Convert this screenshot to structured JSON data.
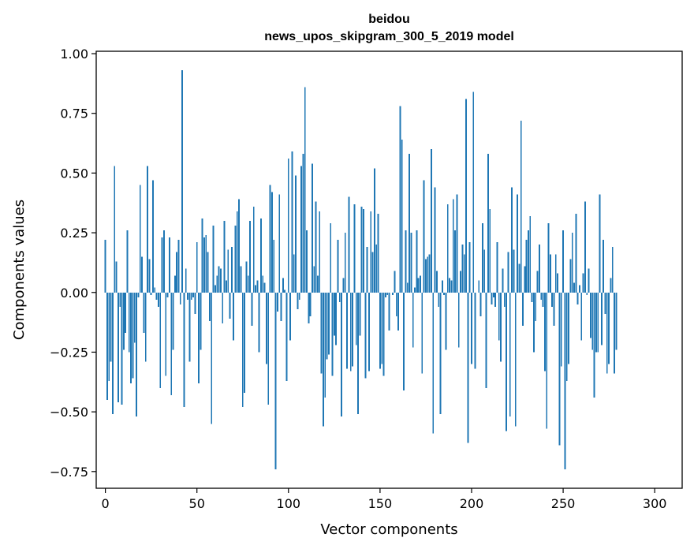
{
  "chart_data": {
    "type": "bar",
    "title": "beidou",
    "subtitle": "news_upos_skipgram_300_5_2019 model",
    "xlabel": "Vector components",
    "ylabel": "Components values",
    "xlim": [
      -5,
      315
    ],
    "ylim": [
      -0.82,
      1.01
    ],
    "x_ticks": [
      0,
      50,
      100,
      150,
      200,
      250,
      300
    ],
    "y_ticks": [
      1.0,
      0.75,
      0.5,
      0.25,
      0.0,
      -0.25,
      -0.5,
      -0.75
    ],
    "x_tick_labels": [
      "0",
      "50",
      "100",
      "150",
      "200",
      "250",
      "300"
    ],
    "y_tick_labels": [
      "1.00",
      "0.75",
      "0.50",
      "0.25",
      "0.00",
      "−0.25",
      "−0.50",
      "−0.75"
    ],
    "bar_color": "#1f77b4",
    "values": [
      0.22,
      -0.45,
      -0.37,
      -0.29,
      -0.51,
      0.53,
      0.13,
      -0.46,
      -0.06,
      -0.47,
      -0.24,
      -0.17,
      0.26,
      -0.25,
      -0.38,
      -0.36,
      -0.21,
      -0.52,
      -0.02,
      0.45,
      0.15,
      -0.17,
      -0.29,
      0.53,
      0.14,
      -0.01,
      0.47,
      0.02,
      -0.03,
      -0.06,
      -0.4,
      0.23,
      0.26,
      -0.35,
      -0.02,
      0.23,
      -0.43,
      -0.24,
      0.07,
      0.17,
      0.22,
      -0.05,
      0.93,
      -0.48,
      0.1,
      -0.03,
      -0.29,
      -0.03,
      -0.02,
      -0.09,
      0.21,
      -0.38,
      -0.24,
      0.31,
      0.23,
      0.24,
      0.17,
      -0.12,
      -0.55,
      0.28,
      0.03,
      0.07,
      0.11,
      0.1,
      -0.13,
      0.3,
      0.05,
      0.18,
      -0.11,
      0.19,
      -0.2,
      0.28,
      0.34,
      0.39,
      0.11,
      -0.48,
      -0.42,
      0.13,
      0.07,
      0.3,
      -0.14,
      0.36,
      0.03,
      0.05,
      -0.25,
      0.31,
      0.07,
      0.04,
      -0.3,
      -0.47,
      0.45,
      0.42,
      0.22,
      -0.74,
      -0.08,
      0.41,
      -0.12,
      0.06,
      0.01,
      -0.37,
      0.56,
      -0.2,
      0.59,
      0.16,
      0.49,
      -0.07,
      -0.03,
      0.53,
      0.58,
      0.86,
      0.26,
      -0.13,
      -0.1,
      0.54,
      0.11,
      0.38,
      0.07,
      0.34,
      -0.34,
      -0.56,
      -0.44,
      -0.28,
      -0.26,
      0.29,
      -0.35,
      -0.18,
      -0.22,
      0.22,
      -0.04,
      -0.52,
      0.06,
      0.25,
      -0.32,
      0.4,
      -0.33,
      -0.31,
      0.37,
      -0.22,
      -0.51,
      -0.18,
      0.36,
      0.35,
      -0.36,
      0.19,
      -0.33,
      0.34,
      0.17,
      0.52,
      0.2,
      0.33,
      -0.32,
      -0.3,
      -0.35,
      -0.02,
      -0.01,
      -0.16,
      0.0,
      -0.01,
      0.09,
      -0.1,
      -0.16,
      0.78,
      0.64,
      -0.41,
      0.26,
      0.04,
      0.58,
      0.25,
      -0.23,
      0.02,
      0.26,
      0.06,
      0.07,
      -0.34,
      0.47,
      0.14,
      0.15,
      0.16,
      0.6,
      -0.59,
      0.44,
      0.09,
      -0.06,
      -0.51,
      0.05,
      -0.01,
      -0.24,
      0.37,
      0.06,
      0.05,
      0.39,
      0.26,
      0.41,
      -0.23,
      0.09,
      0.2,
      0.16,
      0.81,
      -0.63,
      0.21,
      -0.3,
      0.84,
      -0.32,
      0.0,
      0.05,
      -0.1,
      0.29,
      0.18,
      -0.4,
      0.58,
      0.35,
      -0.05,
      -0.02,
      -0.06,
      0.21,
      -0.2,
      -0.29,
      0.1,
      -0.06,
      -0.58,
      0.17,
      -0.52,
      0.44,
      0.18,
      -0.56,
      0.41,
      0.12,
      0.72,
      -0.14,
      0.11,
      0.22,
      0.26,
      0.32,
      -0.04,
      -0.25,
      -0.12,
      0.09,
      0.2,
      -0.03,
      -0.06,
      -0.33,
      -0.57,
      0.29,
      0.16,
      -0.06,
      -0.14,
      0.16,
      0.08,
      -0.64,
      -0.31,
      0.26,
      -0.74,
      -0.37,
      -0.3,
      0.14,
      0.25,
      0.04,
      0.33,
      -0.05,
      0.03,
      -0.2,
      0.08,
      0.38,
      -0.01,
      0.1,
      -0.19,
      -0.24,
      -0.44,
      -0.25,
      -0.25,
      0.41,
      -0.22,
      0.22,
      -0.09,
      -0.34,
      -0.3,
      0.06,
      0.19,
      -0.34,
      -0.24
    ]
  }
}
